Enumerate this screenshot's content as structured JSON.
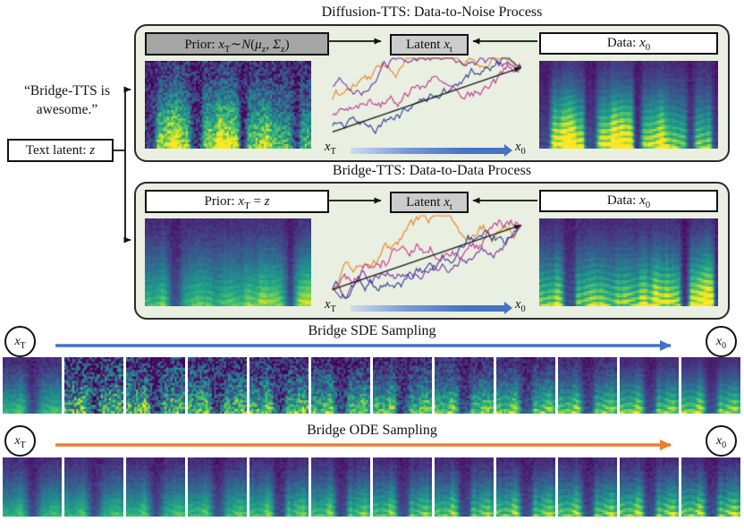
{
  "colors": {
    "panel_bg": "#e9efe1",
    "panel_border": "#2b2b2b",
    "prior_gray": "#a6a6a6",
    "latent_gray": "#cccccc",
    "blue": "#4472c4",
    "orange": "#ed7d31",
    "traj_colors": [
      "#e8821e",
      "#7030a0",
      "#2a3990",
      "#c0368f"
    ]
  },
  "input_column": {
    "quote_line1": "“Bridge-TTS is",
    "quote_line2": "awesome.”",
    "text_latent_label": "Text latent: *z*"
  },
  "diffusion_panel": {
    "title": "Diffusion-TTS: Data-to-Noise Process",
    "prior_label": "Prior: x_T∼*N*(μ_z, Σ_z)",
    "latent_label": "Latent x_t",
    "data_label": "Data: x_0",
    "traj_start_label": "x_T",
    "traj_end_label": "x_0"
  },
  "bridge_panel": {
    "title": "Bridge-TTS: Data-to-Data Process",
    "prior_label": "Prior: x_T = *z*",
    "latent_label": "Latent x_t",
    "data_label": "Data: x_0",
    "traj_start_label": "x_T",
    "traj_end_label": "x_0"
  },
  "sde_row": {
    "title": "Bridge SDE Sampling",
    "start_label": "x_T",
    "end_label": "x_0",
    "num_frames": 12
  },
  "ode_row": {
    "title": "Bridge ODE Sampling",
    "start_label": "x_T",
    "end_label": "x_0",
    "num_frames": 12
  }
}
